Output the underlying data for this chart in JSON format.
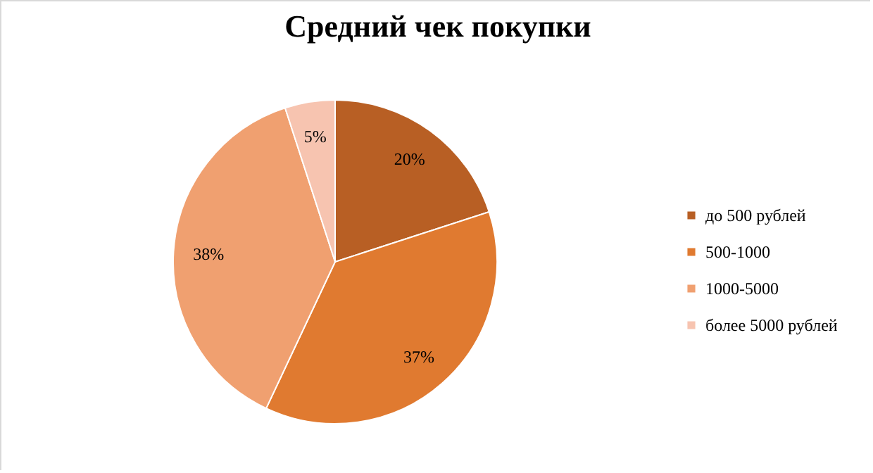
{
  "chart_data": {
    "type": "pie",
    "title": "Средний чек покупки",
    "categories": [
      "до 500 рублей",
      "500-1000",
      "1000-5000",
      "более 5000 рублей"
    ],
    "values": [
      20,
      37,
      38,
      5
    ],
    "value_labels": [
      "20%",
      "37%",
      "38%",
      "5%"
    ],
    "colors": [
      "#b85f24",
      "#e07a30",
      "#f0a070",
      "#f7c4b0"
    ],
    "legend": "right"
  }
}
